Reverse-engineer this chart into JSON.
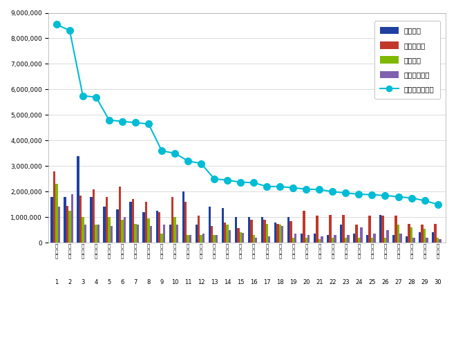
{
  "x_labels": [
    "김\n희\n애",
    "한\n소\n희",
    "박\n해\n준",
    "조\n정\n석",
    "유\n연\n석",
    "이\n민\n호",
    "전\n미\n도",
    "정\n경\n호",
    "김\n고\n은",
    "백\n혜\n진",
    "육\n성\n재",
    "김\n대\n명",
    "장\n나\n라",
    "유\n인\n영",
    "박\n선\n영",
    "우\n도\n환",
    "한\n지\n은",
    "김\n용\n민",
    "황\n정\n민",
    "정\n소\n민",
    "김\n용\n수",
    "이\n보\n영",
    "최\n강\n희",
    "유\n지\n태",
    "이\n민\n정",
    "박\n하\n나",
    "신\n하\n균",
    "고\n주\n원",
    "이\n상\n면",
    "전\n소\n니"
  ],
  "x_numbers": [
    1,
    2,
    3,
    4,
    5,
    6,
    7,
    8,
    9,
    10,
    11,
    12,
    13,
    14,
    15,
    16,
    17,
    18,
    19,
    20,
    21,
    22,
    23,
    24,
    25,
    26,
    27,
    28,
    29,
    30
  ],
  "brand_score": [
    8550000,
    8300000,
    5750000,
    5700000,
    4800000,
    4750000,
    4700000,
    4650000,
    3600000,
    3500000,
    3200000,
    3100000,
    2500000,
    2450000,
    2370000,
    2350000,
    2200000,
    2200000,
    2150000,
    2100000,
    2080000,
    2000000,
    1950000,
    1900000,
    1880000,
    1850000,
    1800000,
    1750000,
    1650000,
    1500000
  ],
  "participation": [
    1800000,
    1800000,
    3400000,
    1800000,
    1400000,
    1300000,
    1600000,
    1200000,
    1250000,
    700000,
    2000000,
    700000,
    1400000,
    1350000,
    1000000,
    1000000,
    1000000,
    800000,
    1000000,
    350000,
    350000,
    300000,
    700000,
    350000,
    300000,
    1100000,
    300000,
    250000,
    420000,
    400000
  ],
  "media": [
    2800000,
    1450000,
    1850000,
    2100000,
    1800000,
    2200000,
    1700000,
    1600000,
    1200000,
    1800000,
    1600000,
    1050000,
    650000,
    800000,
    580000,
    900000,
    900000,
    750000,
    850000,
    1250000,
    1050000,
    1100000,
    1100000,
    700000,
    1050000,
    1050000,
    1050000,
    750000,
    700000,
    750000
  ],
  "communication": [
    2300000,
    1250000,
    1000000,
    700000,
    1000000,
    900000,
    750000,
    950000,
    350000,
    1000000,
    300000,
    300000,
    300000,
    700000,
    400000,
    300000,
    750000,
    700000,
    200000,
    200000,
    150000,
    200000,
    200000,
    200000,
    200000,
    200000,
    700000,
    600000,
    550000,
    200000
  ],
  "community": [
    1400000,
    1900000,
    700000,
    700000,
    650000,
    1000000,
    700000,
    650000,
    700000,
    700000,
    300000,
    350000,
    300000,
    500000,
    380000,
    200000,
    250000,
    650000,
    350000,
    300000,
    250000,
    300000,
    300000,
    600000,
    350000,
    500000,
    350000,
    200000,
    200000,
    150000
  ],
  "colors": {
    "participation": "#2040a0",
    "media": "#c0392b",
    "communication": "#7fb800",
    "community": "#8060b0",
    "brand": "#00bcd4"
  },
  "ylim": [
    0,
    9000000
  ],
  "yticks": [
    0,
    1000000,
    2000000,
    3000000,
    4000000,
    5000000,
    6000000,
    7000000,
    8000000,
    9000000
  ],
  "legend_labels": [
    "참여지수",
    "미디어지수",
    "소통지수",
    "커뮤니티지수",
    "브랜드평판지수"
  ],
  "background_color": "#ffffff",
  "grid_color": "#cccccc"
}
